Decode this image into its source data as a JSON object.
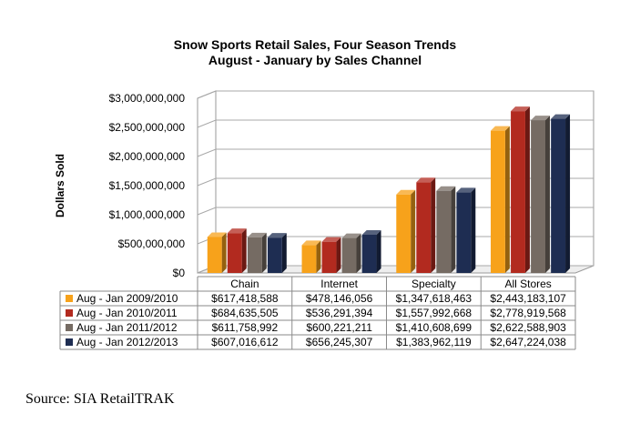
{
  "chart_data": {
    "type": "bar",
    "title": [
      "Snow Sports Retail Sales, Four Season Trends",
      "August - January by Sales Channel"
    ],
    "ylabel": "Dollars Sold",
    "ylim": [
      0,
      3000000000
    ],
    "yticks": [
      {
        "value": 0,
        "label": "$0"
      },
      {
        "value": 500000000,
        "label": "$500,000,000"
      },
      {
        "value": 1000000000,
        "label": "$1,000,000,000"
      },
      {
        "value": 1500000000,
        "label": "$1,500,000,000"
      },
      {
        "value": 2000000000,
        "label": "$2,000,000,000"
      },
      {
        "value": 2500000000,
        "label": "$2,500,000,000"
      },
      {
        "value": 3000000000,
        "label": "$3,000,000,000"
      }
    ],
    "grid": true,
    "legend": "data-table",
    "categories": [
      "Chain",
      "Internet",
      "Specialty",
      "All Stores"
    ],
    "series": [
      {
        "name": "Aug - Jan 2009/2010",
        "color": "#F7A21B",
        "values": [
          617418588,
          478146056,
          1347618463,
          2443183107
        ],
        "labels": [
          "$617,418,588",
          "$478,146,056",
          "$1,347,618,463",
          "$2,443,183,107"
        ]
      },
      {
        "name": "Aug - Jan 2010/2011",
        "color": "#B22A1F",
        "values": [
          684635505,
          536291394,
          1557992668,
          2778919568
        ],
        "labels": [
          "$684,635,505",
          "$536,291,394",
          "$1,557,992,668",
          "$2,778,919,568"
        ]
      },
      {
        "name": "Aug - Jan 2011/2012",
        "color": "#756B63",
        "values": [
          611758992,
          600221211,
          1410608699,
          2622588903
        ],
        "labels": [
          "$611,758,992",
          "$600,221,211",
          "$1,410,608,699",
          "$2,622,588,903"
        ]
      },
      {
        "name": "Aug - Jan 2012/2013",
        "color": "#1E2D52",
        "values": [
          607016612,
          656245307,
          1383962119,
          2647224038
        ],
        "labels": [
          "$607,016,612",
          "$656,245,307",
          "$1,383,962,119",
          "$2,647,224,038"
        ]
      }
    ]
  },
  "source": "Source: SIA RetailTRAK"
}
